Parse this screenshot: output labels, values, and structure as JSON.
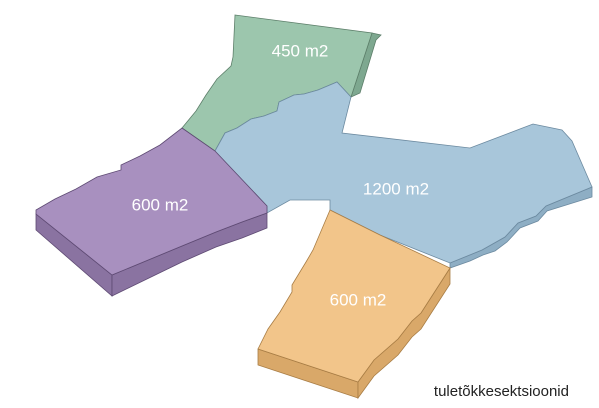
{
  "zones": [
    {
      "id": "green",
      "label": "450 m2",
      "top": "#9cc6ad",
      "side": "#7ea890",
      "stroke": "#5d7f6a"
    },
    {
      "id": "purple",
      "label": "600 m2",
      "top": "#a890bf",
      "side": "#8a73a1",
      "stroke": "#5e4a73"
    },
    {
      "id": "blue",
      "label": "1200 m2",
      "top": "#a8c6da",
      "side": "#8eaec4",
      "stroke": "#6c8aa0"
    },
    {
      "id": "orange",
      "label": "600 m2",
      "top": "#f2c58a",
      "side": "#d9a869",
      "stroke": "#a87d45"
    }
  ],
  "caption": "tuletõkkesektsioonid"
}
